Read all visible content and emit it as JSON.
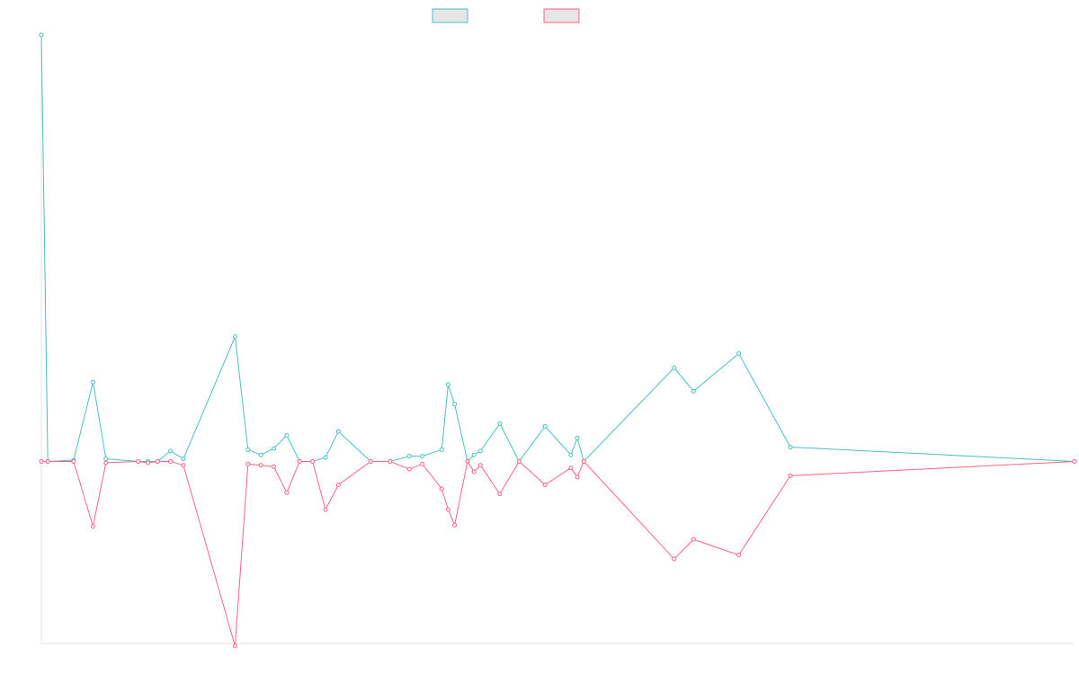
{
  "chart_data": {
    "type": "line",
    "title": "",
    "xlabel": "",
    "ylabel": "",
    "ylim": [
      -140,
      330
    ],
    "grid": false,
    "legend_position": "top-center",
    "colors": [
      "#4bc0c0",
      "#ff6384"
    ],
    "series": [
      {
        "name": "",
        "color": "#4bc0c0",
        "points": [
          [
            0,
            328
          ],
          [
            0.5,
            0
          ],
          [
            2.5,
            1
          ],
          [
            4,
            61
          ],
          [
            5,
            2
          ],
          [
            7.5,
            0
          ],
          [
            8.25,
            0
          ],
          [
            9,
            0
          ],
          [
            10,
            8
          ],
          [
            11,
            2
          ],
          [
            15,
            96
          ],
          [
            16,
            9
          ],
          [
            17,
            5
          ],
          [
            18,
            10
          ],
          [
            19,
            20
          ],
          [
            20,
            0
          ],
          [
            21,
            0
          ],
          [
            22,
            3
          ],
          [
            23,
            23
          ],
          [
            25.5,
            0
          ],
          [
            27,
            0
          ],
          [
            28.5,
            4
          ],
          [
            29.5,
            4
          ],
          [
            31,
            9
          ],
          [
            31.5,
            59
          ],
          [
            32,
            44
          ],
          [
            33,
            0
          ],
          [
            33.5,
            5
          ],
          [
            34,
            8
          ],
          [
            35.5,
            29
          ],
          [
            37,
            0
          ],
          [
            39,
            27
          ],
          [
            41,
            5
          ],
          [
            41.5,
            18
          ],
          [
            42,
            0
          ],
          [
            49,
            72
          ],
          [
            50.5,
            54
          ],
          [
            54,
            83
          ],
          [
            58,
            11
          ],
          [
            80,
            0
          ]
        ]
      },
      {
        "name": "",
        "color": "#ff6384",
        "points": [
          [
            0,
            0
          ],
          [
            0.5,
            0
          ],
          [
            2.5,
            0
          ],
          [
            4,
            -50
          ],
          [
            5,
            -1
          ],
          [
            7.5,
            0
          ],
          [
            8.25,
            -1
          ],
          [
            9,
            0
          ],
          [
            10,
            0
          ],
          [
            11,
            -3
          ],
          [
            15,
            -142
          ],
          [
            16,
            -2
          ],
          [
            17,
            -3
          ],
          [
            18,
            -4
          ],
          [
            19,
            -24
          ],
          [
            20,
            0
          ],
          [
            21,
            0
          ],
          [
            22,
            -37
          ],
          [
            23,
            -18
          ],
          [
            25.5,
            0
          ],
          [
            27,
            0
          ],
          [
            28.5,
            -6
          ],
          [
            29.5,
            -2
          ],
          [
            31,
            -21
          ],
          [
            31.5,
            -37
          ],
          [
            32,
            -49
          ],
          [
            33,
            0
          ],
          [
            33.5,
            -8
          ],
          [
            34,
            -3
          ],
          [
            35.5,
            -25
          ],
          [
            37,
            0
          ],
          [
            39,
            -18
          ],
          [
            41,
            -5
          ],
          [
            41.5,
            -12
          ],
          [
            42,
            0
          ],
          [
            49,
            -75
          ],
          [
            50.5,
            -60
          ],
          [
            54,
            -72
          ],
          [
            58,
            -11
          ],
          [
            80,
            0
          ]
        ]
      }
    ]
  }
}
